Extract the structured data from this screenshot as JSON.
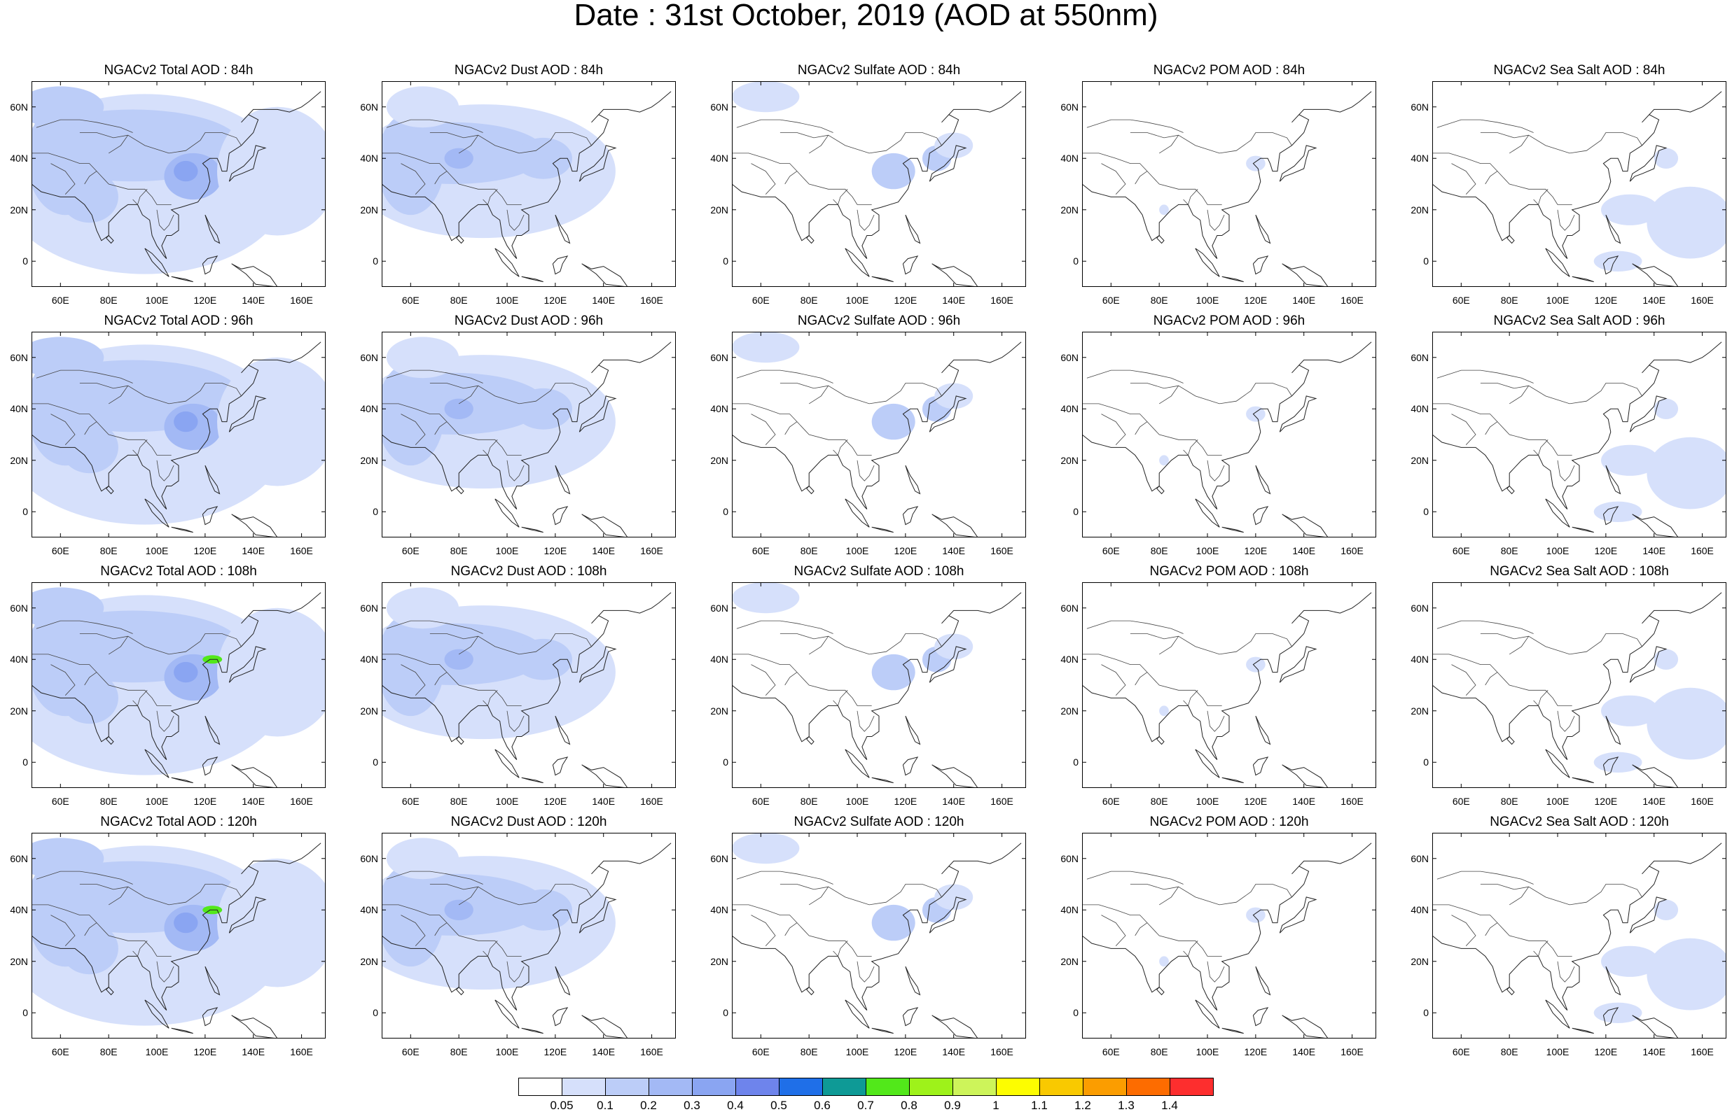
{
  "figure": {
    "title": "Date : 31st October, 2019 (AOD at 550nm)"
  },
  "panels": [
    {
      "title": "NGACv2 Total AOD : 84h",
      "species": "total",
      "forecast_hour": 84
    },
    {
      "title": "NGACv2 Dust AOD : 84h",
      "species": "dust",
      "forecast_hour": 84
    },
    {
      "title": "NGACv2 Sulfate AOD : 84h",
      "species": "sulfate",
      "forecast_hour": 84
    },
    {
      "title": "NGACv2 POM AOD : 84h",
      "species": "pom",
      "forecast_hour": 84
    },
    {
      "title": "NGACv2 Sea Salt AOD : 84h",
      "species": "seasalt",
      "forecast_hour": 84
    },
    {
      "title": "NGACv2 Total AOD : 96h",
      "species": "total",
      "forecast_hour": 96
    },
    {
      "title": "NGACv2 Dust AOD : 96h",
      "species": "dust",
      "forecast_hour": 96
    },
    {
      "title": "NGACv2 Sulfate AOD : 96h",
      "species": "sulfate",
      "forecast_hour": 96
    },
    {
      "title": "NGACv2 POM AOD : 96h",
      "species": "pom",
      "forecast_hour": 96
    },
    {
      "title": "NGACv2 Sea Salt AOD : 96h",
      "species": "seasalt",
      "forecast_hour": 96
    },
    {
      "title": "NGACv2 Total AOD : 108h",
      "species": "total",
      "forecast_hour": 108
    },
    {
      "title": "NGACv2 Dust AOD : 108h",
      "species": "dust",
      "forecast_hour": 108
    },
    {
      "title": "NGACv2 Sulfate AOD : 108h",
      "species": "sulfate",
      "forecast_hour": 108
    },
    {
      "title": "NGACv2 POM AOD : 108h",
      "species": "pom",
      "forecast_hour": 108
    },
    {
      "title": "NGACv2 Sea Salt AOD : 108h",
      "species": "seasalt",
      "forecast_hour": 108
    },
    {
      "title": "NGACv2 Total AOD : 120h",
      "species": "total",
      "forecast_hour": 120
    },
    {
      "title": "NGACv2 Dust AOD : 120h",
      "species": "dust",
      "forecast_hour": 120
    },
    {
      "title": "NGACv2 Sulfate AOD : 120h",
      "species": "sulfate",
      "forecast_hour": 120
    },
    {
      "title": "NGACv2 POM AOD : 120h",
      "species": "pom",
      "forecast_hour": 120
    },
    {
      "title": "NGACv2 Sea Salt  AOD : 120h",
      "species": "seasalt",
      "forecast_hour": 120
    }
  ],
  "axes": {
    "lat_ticks": [
      "60N",
      "40N",
      "20N",
      "0"
    ],
    "lon_ticks": [
      "60E",
      "80E",
      "100E",
      "120E",
      "140E",
      "160E"
    ]
  },
  "colorbar": {
    "labels": [
      "0.05",
      "0.1",
      "0.2",
      "0.3",
      "0.4",
      "0.5",
      "0.6",
      "0.7",
      "0.8",
      "0.9",
      "1",
      "1.1",
      "1.2",
      "1.3",
      "1.4"
    ],
    "colors": [
      "#ffffff",
      "#d6e0fb",
      "#bccdf8",
      "#a3b9f5",
      "#8aa5f2",
      "#6e84ec",
      "#1f6fe8",
      "#0e9a96",
      "#52e81a",
      "#9ef21a",
      "#cdf45a",
      "#fdfd00",
      "#f9c900",
      "#fb9d00",
      "#fd6c00",
      "#fd2e2e"
    ]
  }
}
